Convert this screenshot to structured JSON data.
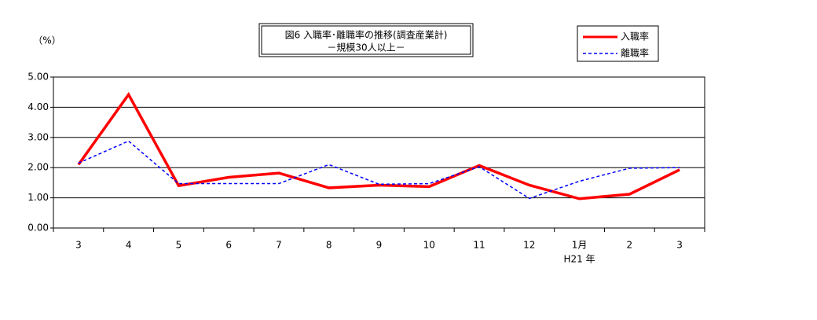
{
  "chart_data": {
    "type": "line",
    "title": [
      "図6  入職率･離職率の推移(調査産業計)",
      "－規模30人以上－"
    ],
    "y_label": "（%）",
    "categories": [
      "3",
      "4",
      "5",
      "6",
      "7",
      "8",
      "9",
      "10",
      "11",
      "12",
      "1月",
      "2",
      "3"
    ],
    "annotations": [
      {
        "text": "H21 年",
        "category": 10
      }
    ],
    "series": [
      {
        "name": "入職率",
        "color": "#ff0000",
        "dash": false,
        "values": [
          2.1,
          4.42,
          1.4,
          1.68,
          1.82,
          1.33,
          1.42,
          1.37,
          2.07,
          1.42,
          0.97,
          1.12,
          1.93
        ]
      },
      {
        "name": "離職率",
        "color": "#0000ff",
        "dash": true,
        "values": [
          2.15,
          2.88,
          1.47,
          1.47,
          1.47,
          2.1,
          1.45,
          1.47,
          2.03,
          0.98,
          1.55,
          1.98,
          2.0
        ]
      }
    ],
    "ylim": [
      0,
      5
    ],
    "yticks": [
      {
        "value": 0,
        "label": "0.00"
      },
      {
        "value": 1,
        "label": "1.00"
      },
      {
        "value": 2,
        "label": "2.00"
      },
      {
        "value": 3,
        "label": "3.00"
      },
      {
        "value": 4,
        "label": "4.00"
      },
      {
        "value": 5,
        "label": "5.00"
      }
    ],
    "grid": true
  }
}
